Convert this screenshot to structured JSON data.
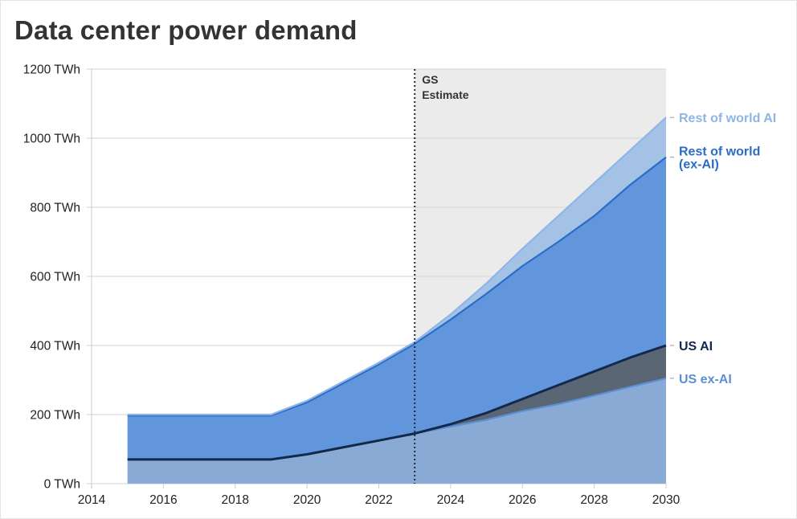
{
  "chart_data": {
    "type": "area",
    "title": "Data center power demand",
    "xlabel": "",
    "ylabel": "",
    "x": [
      2015,
      2016,
      2017,
      2018,
      2019,
      2020,
      2021,
      2022,
      2023,
      2024,
      2025,
      2026,
      2027,
      2028,
      2029,
      2030
    ],
    "xlim": [
      2014,
      2030
    ],
    "ylim": [
      0,
      1200
    ],
    "x_ticks": [
      2014,
      2016,
      2018,
      2020,
      2022,
      2024,
      2026,
      2028,
      2030
    ],
    "x_tick_labels": [
      "2014",
      "2016",
      "2018",
      "2020",
      "2022",
      "2024",
      "2026",
      "2028",
      "2030"
    ],
    "y_ticks": [
      0,
      200,
      400,
      600,
      800,
      1000,
      1200
    ],
    "y_tick_labels": [
      "0 TWh",
      "200 TWh",
      "400 TWh",
      "600 TWh",
      "800 TWh",
      "1000 TWh",
      "1200 TWh"
    ],
    "grid": true,
    "stacked": true,
    "legend_placement": "right (inline labels at line ends)",
    "series": [
      {
        "name": "US ex-AI",
        "fill": "#8aaad6",
        "line": "#5b8fd6",
        "label_color": "#5b8fd6",
        "values": [
          70,
          70,
          70,
          70,
          70,
          85,
          105,
          125,
          145,
          165,
          185,
          210,
          230,
          255,
          280,
          305
        ]
      },
      {
        "name": "US AI",
        "fill": "#5b6675",
        "line": "#13294b",
        "label_color": "#13294b",
        "values": [
          0,
          0,
          0,
          0,
          0,
          0,
          0,
          0,
          0,
          7,
          20,
          35,
          55,
          70,
          85,
          95
        ]
      },
      {
        "name": "Rest of world (ex-AI)",
        "fill": "#6196dc",
        "line": "#2b6cc8",
        "label_color": "#2b6cc8",
        "values": [
          127,
          127,
          127,
          127,
          127,
          150,
          185,
          220,
          260,
          303,
          345,
          385,
          415,
          450,
          500,
          545
        ]
      },
      {
        "name": "Rest of world AI",
        "fill": "#a3c2e6",
        "line": "#8fb5e6",
        "label_color": "#8fb5e6",
        "values": [
          3,
          3,
          3,
          3,
          3,
          5,
          5,
          5,
          5,
          15,
          30,
          50,
          75,
          95,
          100,
          115
        ]
      }
    ],
    "annotations": [
      {
        "text_lines": [
          "GS",
          "Estimate"
        ],
        "x": 2023,
        "type": "vertical-dotted-line",
        "shaded_region": [
          2023,
          2030
        ],
        "shade_color": "#ebebeb"
      }
    ]
  }
}
